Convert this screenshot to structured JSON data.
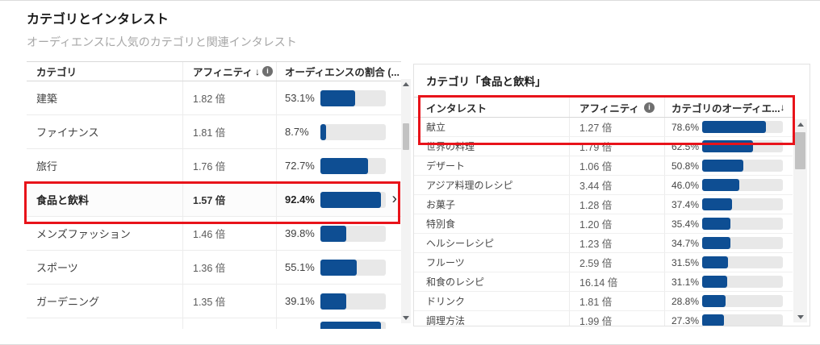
{
  "page": {
    "title": "カテゴリとインタレスト",
    "subtitle": "オーディエンスに人気のカテゴリと関連インタレスト"
  },
  "icons": {
    "sort_desc": "↓",
    "info": "i",
    "chevron_right": "›"
  },
  "colors": {
    "bar_fill": "#0E4E93",
    "bar_track": "#E8E8E8",
    "annotation": "#E8131A"
  },
  "left_table": {
    "headers": {
      "category": "カテゴリ",
      "affinity": "アフィニティ",
      "audience_share": "オーディエンスの割合 (..."
    },
    "rows": [
      {
        "category": "建築",
        "affinity": "1.82 倍",
        "share_label": "53.1%",
        "share_pct": 53.1,
        "selected": false,
        "partial": false
      },
      {
        "category": "ファイナンス",
        "affinity": "1.81 倍",
        "share_label": "8.7%",
        "share_pct": 8.7,
        "selected": false,
        "partial": false
      },
      {
        "category": "旅行",
        "affinity": "1.76 倍",
        "share_label": "72.7%",
        "share_pct": 72.7,
        "selected": false,
        "partial": false
      },
      {
        "category": "食品と飲料",
        "affinity": "1.57 倍",
        "share_label": "92.4%",
        "share_pct": 92.4,
        "selected": true,
        "partial": false
      },
      {
        "category": "メンズファッション",
        "affinity": "1.46 倍",
        "share_label": "39.8%",
        "share_pct": 39.8,
        "selected": false,
        "partial": false
      },
      {
        "category": "スポーツ",
        "affinity": "1.36 倍",
        "share_label": "55.1%",
        "share_pct": 55.1,
        "selected": false,
        "partial": false
      },
      {
        "category": "ガーデニング",
        "affinity": "1.35 倍",
        "share_label": "39.1%",
        "share_pct": 39.1,
        "selected": false,
        "partial": false
      },
      {
        "category": "",
        "affinity": "",
        "share_label": "",
        "share_pct": 92,
        "selected": false,
        "partial": true
      }
    ]
  },
  "right_panel": {
    "title": "カテゴリ「食品と飲料」",
    "headers": {
      "interest": "インタレスト",
      "affinity": "アフィニティ",
      "audience_share": "カテゴリのオーディエ..."
    },
    "rows": [
      {
        "interest": "献立",
        "affinity": "1.27 倍",
        "share_label": "78.6%",
        "share_pct": 78.6
      },
      {
        "interest": "世界の料理",
        "affinity": "1.79 倍",
        "share_label": "62.5%",
        "share_pct": 62.5
      },
      {
        "interest": "デザート",
        "affinity": "1.06 倍",
        "share_label": "50.8%",
        "share_pct": 50.8
      },
      {
        "interest": "アジア料理のレシピ",
        "affinity": "3.44 倍",
        "share_label": "46.0%",
        "share_pct": 46.0
      },
      {
        "interest": "お菓子",
        "affinity": "1.28 倍",
        "share_label": "37.4%",
        "share_pct": 37.4
      },
      {
        "interest": "特別食",
        "affinity": "1.20 倍",
        "share_label": "35.4%",
        "share_pct": 35.4
      },
      {
        "interest": "ヘルシーレシピ",
        "affinity": "1.23 倍",
        "share_label": "34.7%",
        "share_pct": 34.7
      },
      {
        "interest": "フルーツ",
        "affinity": "2.59 倍",
        "share_label": "31.5%",
        "share_pct": 31.5
      },
      {
        "interest": "和食のレシピ",
        "affinity": "16.14 倍",
        "share_label": "31.1%",
        "share_pct": 31.1
      },
      {
        "interest": "ドリンク",
        "affinity": "1.81 倍",
        "share_label": "28.8%",
        "share_pct": 28.8
      },
      {
        "interest": "調理方法",
        "affinity": "1.99 倍",
        "share_label": "27.3%",
        "share_pct": 27.3
      }
    ]
  }
}
